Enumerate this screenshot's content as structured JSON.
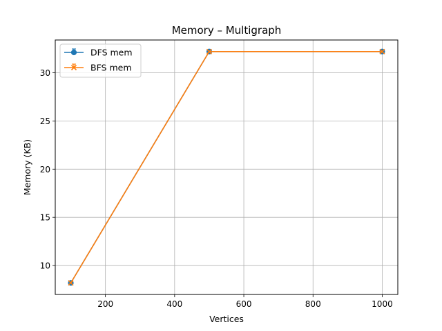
{
  "chart_data": {
    "type": "line",
    "title": "Memory – Multigraph",
    "xlabel": "Vertices",
    "ylabel": "Memory (KB)",
    "xlim": [
      55,
      1045
    ],
    "ylim": [
      7.0,
      33.4
    ],
    "x_ticks": [
      200,
      400,
      600,
      800,
      1000
    ],
    "y_ticks": [
      10,
      15,
      20,
      25,
      30
    ],
    "grid": true,
    "legend_position": "top-left",
    "series": [
      {
        "name": "DFS mem",
        "color": "#1f77b4",
        "marker": "circle",
        "x": [
          100,
          500,
          1000
        ],
        "y": [
          8.2,
          32.2,
          32.2
        ]
      },
      {
        "name": "BFS mem",
        "color": "#ff7f0e",
        "marker": "x",
        "x": [
          100,
          500,
          1000
        ],
        "y": [
          8.2,
          32.2,
          32.2
        ]
      }
    ]
  }
}
